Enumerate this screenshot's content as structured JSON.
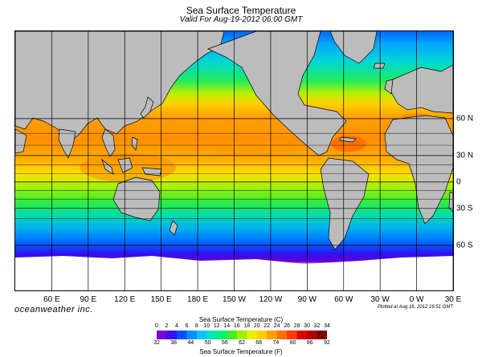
{
  "header": {
    "title": "Sea Surface Temperature",
    "subtitle": "Valid For Aug-19-2012 06:00 GMT"
  },
  "map": {
    "projection": "Mercator",
    "lon_range": [
      30,
      390
    ],
    "lat_range": [
      -78,
      85
    ],
    "lon_labels": [
      {
        "lon": 60,
        "label": "60 E"
      },
      {
        "lon": 90,
        "label": "90 E"
      },
      {
        "lon": 120,
        "label": "120 E"
      },
      {
        "lon": 150,
        "label": "150 E"
      },
      {
        "lon": 180,
        "label": "180 E"
      },
      {
        "lon": 210,
        "label": "150 W"
      },
      {
        "lon": 240,
        "label": "120 W"
      },
      {
        "lon": 270,
        "label": "90 W"
      },
      {
        "lon": 300,
        "label": "60 W"
      },
      {
        "lon": 330,
        "label": "30 W"
      },
      {
        "lon": 360,
        "label": "0 W"
      },
      {
        "lon": 390,
        "label": "30 E"
      }
    ],
    "lat_labels": [
      {
        "lat": 60,
        "label": "60 N"
      },
      {
        "lat": 30,
        "label": "30 N"
      },
      {
        "lat": 0,
        "label": "0"
      },
      {
        "lat": -30,
        "label": "30 S"
      },
      {
        "lat": -60,
        "label": "60 S"
      }
    ],
    "land_color": "#bcbcbc",
    "ice_color": "#ffffff",
    "grid_color": "#000000"
  },
  "footer": {
    "brand": "oceanweather inc.",
    "plotted": "Plotted at Aug 16, 2012 16:51 GMT"
  },
  "legend": {
    "celsius_title": "Sea Surface Temperature (C)",
    "fahrenheit_title": "Sea Surface Temperature (F)",
    "celsius_ticks": [
      "0",
      "2",
      "4",
      "6",
      "8",
      "10",
      "12",
      "14",
      "16",
      "18",
      "20",
      "22",
      "24",
      "26",
      "28",
      "30",
      "32",
      "34"
    ],
    "fahrenheit_ticks": [
      "32",
      "38",
      "44",
      "50",
      "56",
      "62",
      "68",
      "74",
      "80",
      "86",
      "92"
    ],
    "colors": [
      "#7a00d6",
      "#3a10f0",
      "#0050ff",
      "#0090ff",
      "#00c8f0",
      "#00e6b4",
      "#00f070",
      "#40f020",
      "#a0f000",
      "#e6f000",
      "#ffd000",
      "#ffa000",
      "#ff7000",
      "#ff3a00",
      "#e00000",
      "#b00000",
      "#800000"
    ]
  }
}
